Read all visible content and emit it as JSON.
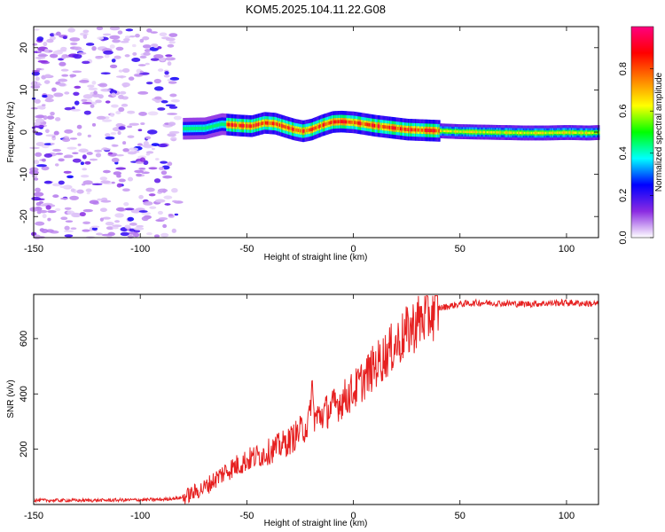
{
  "title": "KOM5.2025.104.11.22.G08",
  "colors": {
    "snr_line": "#e62020",
    "frame": "#000000"
  },
  "chart_data": [
    {
      "type": "heatmap",
      "xlabel": "Height of straight line (km)",
      "ylabel": "Frequency (Hz)",
      "xlim": [
        -150,
        115
      ],
      "ylim": [
        -25,
        25
      ],
      "x_ticks": [
        "-150",
        "-100",
        "-50",
        "0",
        "50",
        "100"
      ],
      "y_ticks": [
        "-20",
        "-10",
        "0",
        "10",
        "20"
      ],
      "colorbar": {
        "label": "Normalized spectral amplitude",
        "range": [
          0,
          1
        ],
        "ticks": [
          "0.0",
          "0.2",
          "0.4",
          "0.6",
          "0.8"
        ],
        "stops": [
          "#ffffff",
          "#8a2be2",
          "#0000ff",
          "#00ffff",
          "#00ff00",
          "#ffff00",
          "#ff8000",
          "#ff0000",
          "#ff0080"
        ]
      },
      "ridge": {
        "x": [
          -80,
          -70,
          -62,
          -55,
          -48,
          -42,
          -37,
          -32,
          -28,
          -24,
          -20,
          -15,
          -10,
          -6,
          -3,
          0,
          5,
          10,
          15,
          20,
          25,
          30,
          35,
          40,
          50,
          60,
          70,
          80,
          90,
          100,
          110,
          115
        ],
        "y": [
          0.8,
          0.9,
          1.9,
          1.6,
          1.4,
          2.2,
          2.0,
          1.2,
          0.6,
          0.2,
          0.6,
          1.6,
          2.4,
          2.5,
          2.4,
          2.3,
          1.9,
          1.5,
          1.2,
          0.9,
          0.6,
          0.5,
          0.4,
          0.3,
          0.1,
          0.0,
          -0.1,
          -0.2,
          -0.2,
          -0.1,
          -0.2,
          -0.1
        ]
      }
    },
    {
      "type": "line",
      "xlabel": "Height of straight line (km)",
      "ylabel": "SNR (v/v)",
      "xlim": [
        -150,
        115
      ],
      "ylim": [
        0,
        760
      ],
      "x_ticks": [
        "-150",
        "-100",
        "-50",
        "0",
        "50",
        "100"
      ],
      "y_ticks": [
        "200",
        "400",
        "600"
      ],
      "series": [
        {
          "trend_x": [
            -150,
            -120,
            -90,
            -80,
            -70,
            -60,
            -50,
            -40,
            -30,
            -20,
            -10,
            0,
            10,
            20,
            30,
            40,
            50,
            60,
            80,
            100,
            115
          ],
          "trend_y": [
            15,
            15,
            18,
            25,
            60,
            120,
            160,
            190,
            230,
            300,
            350,
            410,
            500,
            580,
            660,
            710,
            725,
            730,
            725,
            730,
            725
          ]
        }
      ]
    }
  ]
}
